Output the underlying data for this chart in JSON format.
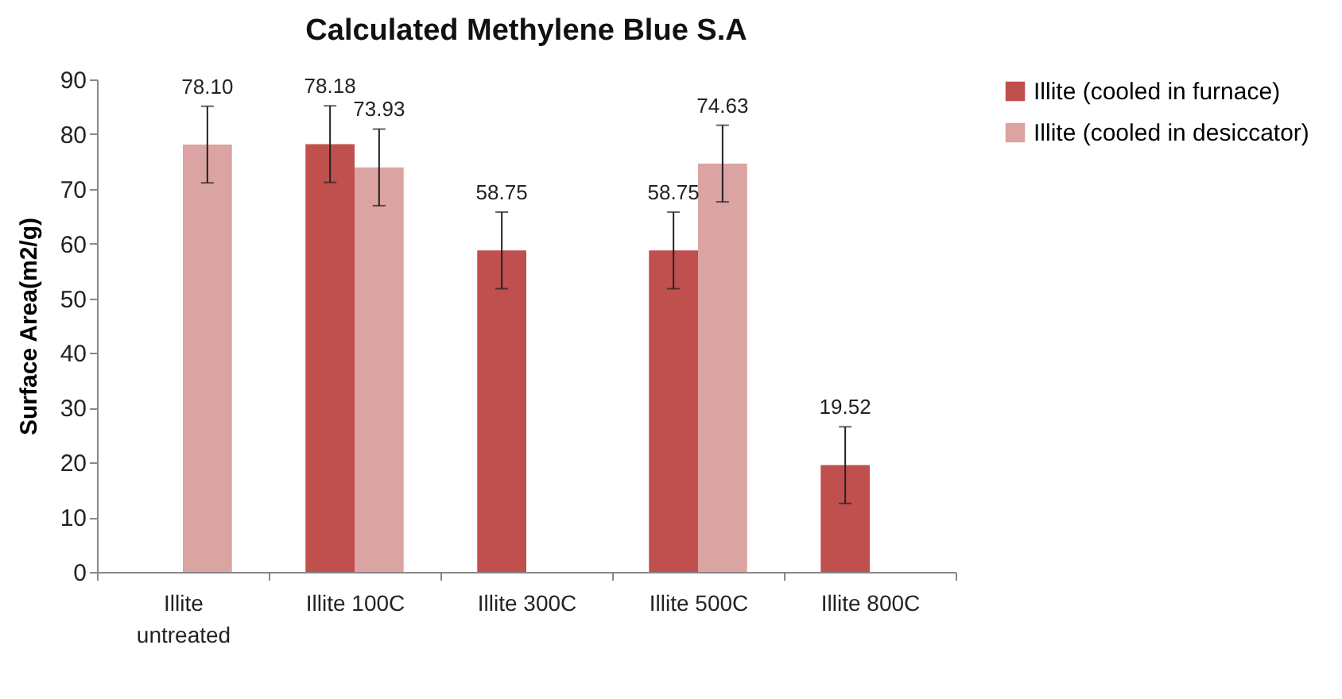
{
  "chart_data": {
    "type": "bar",
    "title": "Calculated Methylene Blue S.A",
    "ylabel": "Surface Area(m2/g)",
    "categories": [
      "Illite untreated",
      "Illite 100C",
      "Illite 300C",
      "Illite 500C",
      "Illite 800C"
    ],
    "series": [
      {
        "name": "Illite (cooled in furnace)",
        "color": "#c0504d",
        "values": [
          null,
          78.18,
          58.75,
          58.75,
          19.52
        ],
        "errors": [
          null,
          7,
          7,
          7,
          7
        ],
        "value_labels": [
          null,
          "78.18",
          "58.75",
          "58.75",
          "19.52"
        ]
      },
      {
        "name": "Illite (cooled in desiccator)",
        "color": "#dba3a2",
        "values": [
          78.1,
          73.93,
          null,
          74.63,
          null
        ],
        "errors": [
          7,
          7,
          null,
          7,
          null
        ],
        "value_labels": [
          "78.10",
          "73.93",
          null,
          "74.63",
          null
        ]
      }
    ],
    "ylim": [
      0,
      90
    ],
    "yticks": [
      0,
      10,
      20,
      30,
      40,
      50,
      60,
      70,
      80,
      90
    ],
    "grid": false,
    "legend": "right"
  }
}
